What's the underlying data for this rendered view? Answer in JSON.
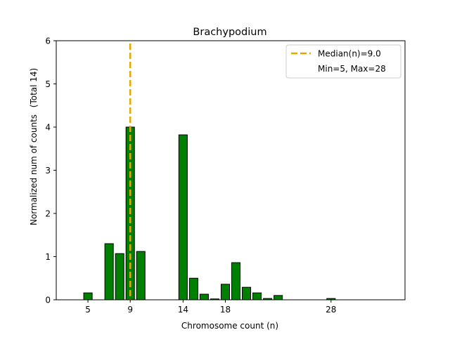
{
  "chart_data": {
    "type": "bar",
    "title": "Brachypodium",
    "xlabel": "Chromosome count (n)",
    "ylabel": "Normalized num of counts",
    "ylabel2": "(Total 14)",
    "xlim": [
      2,
      35
    ],
    "ylim": [
      0,
      6
    ],
    "xticks": [
      5,
      9,
      14,
      18,
      28
    ],
    "yticks": [
      0,
      1,
      2,
      3,
      4,
      5,
      6
    ],
    "bar_color": "#008000",
    "bar_edge_color": "#000000",
    "median_color": "#e5a800",
    "median_x": 9,
    "legend_position": "upper right",
    "legend": {
      "median_label": "Median(n)=9.0",
      "range_label": "Min=5, Max=28"
    },
    "x": [
      5,
      7,
      8,
      9,
      10,
      14,
      15,
      16,
      17,
      18,
      19,
      20,
      21,
      22,
      23,
      28
    ],
    "values": [
      0.16,
      1.3,
      1.07,
      4.0,
      1.12,
      3.82,
      0.5,
      0.13,
      0.02,
      0.36,
      0.86,
      0.29,
      0.16,
      0.03,
      0.1,
      0.03
    ]
  }
}
